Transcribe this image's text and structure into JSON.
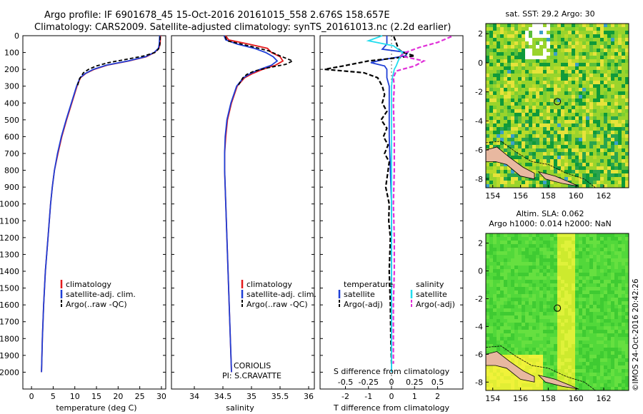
{
  "header": {
    "line1": "Argo profile: IF 6901678_45 15-Oct-2016 20161015_558 2.676S 158.657E",
    "line2": "Climatology: CARS2009. Satellite-adjusted climatology: synTS_20161013.nc (2.2d earlier)"
  },
  "colors": {
    "clim": "#e41a1c",
    "sat": "#1f3fd6",
    "argo": "#000000",
    "sal_sat": "#22ddee",
    "sal_argo": "#e030d8"
  },
  "chart_data": [
    {
      "type": "line",
      "id": "temperature",
      "xlabel": "temperature (deg C)",
      "ylabel": "depth (m)",
      "xlim": [
        -2,
        31
      ],
      "ylim": [
        2100,
        0
      ],
      "xticks": [
        "0",
        "5",
        "10",
        "15",
        "20",
        "25",
        "30"
      ],
      "yticks": [
        "0",
        "100",
        "200",
        "300",
        "400",
        "500",
        "600",
        "700",
        "800",
        "900",
        "1000",
        "1100",
        "1200",
        "1300",
        "1400",
        "1500",
        "1600",
        "1700",
        "1800",
        "1900",
        "2000"
      ],
      "legend": [
        "climatology",
        "satellite-adj. clim.",
        "Argo(..raw -QC)"
      ],
      "legend_loc": "lower-center",
      "series": [
        {
          "name": "climatology",
          "depth": [
            0,
            50,
            75,
            100,
            125,
            150,
            175,
            200,
            225,
            250,
            300,
            400,
            500,
            600,
            700,
            800,
            900,
            1000,
            1200,
            1400,
            1600,
            1800,
            2000
          ],
          "values": [
            29.8,
            29.7,
            29.4,
            28.4,
            26.5,
            22.5,
            17.5,
            14.5,
            12.5,
            11.3,
            10.5,
            9.3,
            8.1,
            7.0,
            6.1,
            5.3,
            4.8,
            4.4,
            3.8,
            3.2,
            2.8,
            2.5,
            2.3
          ]
        },
        {
          "name": "satellite-adj. clim.",
          "depth": [
            0,
            50,
            75,
            100,
            125,
            150,
            175,
            200,
            225,
            250,
            300,
            400,
            500,
            600,
            700,
            800,
            900,
            1000,
            1200,
            1400,
            1600,
            1800,
            2000
          ],
          "values": [
            29.6,
            29.5,
            29.3,
            28.3,
            26.3,
            22.3,
            17.3,
            14.3,
            12.4,
            11.2,
            10.4,
            9.2,
            8.0,
            6.9,
            6.0,
            5.3,
            4.8,
            4.4,
            3.8,
            3.2,
            2.8,
            2.5,
            2.3
          ]
        },
        {
          "name": "Argo(..raw -QC)",
          "depth": [
            5,
            30,
            60,
            80,
            100,
            120,
            140,
            160,
            180,
            200,
            220,
            240,
            260,
            300
          ],
          "values": [
            29.7,
            29.7,
            29.6,
            29.3,
            28.5,
            26.0,
            22.0,
            17.8,
            15.0,
            13.2,
            12.0,
            11.5,
            11.0,
            10.6
          ]
        }
      ]
    },
    {
      "type": "line",
      "id": "salinity",
      "xlabel": "salinity",
      "xlim": [
        33.6,
        36.1
      ],
      "ylim": [
        2100,
        0
      ],
      "xticks": [
        "34",
        "34.5",
        "35",
        "35.5",
        "36"
      ],
      "legend": [
        "climatology",
        "satellite-adj. clim.",
        "Argo(..raw -QC)"
      ],
      "legend_loc": "lower-right",
      "annotation": [
        "CORIOLIS",
        "PI: S.CRAVATTE"
      ],
      "series": [
        {
          "name": "climatology",
          "depth": [
            0,
            25,
            50,
            75,
            100,
            125,
            150,
            175,
            200,
            225,
            250,
            300,
            400,
            500,
            600,
            700,
            800,
            900,
            1000,
            1200,
            1500,
            1800,
            2000
          ],
          "values": [
            34.55,
            34.6,
            34.95,
            35.28,
            35.35,
            35.5,
            35.55,
            35.42,
            35.2,
            35.02,
            34.88,
            34.75,
            34.65,
            34.58,
            34.55,
            34.53,
            34.53,
            34.54,
            34.55,
            34.57,
            34.6,
            34.63,
            34.65
          ]
        },
        {
          "name": "satellite-adj. clim.",
          "depth": [
            0,
            25,
            50,
            75,
            100,
            125,
            150,
            175,
            200,
            225,
            250,
            300,
            400,
            500,
            600,
            700,
            800,
            900,
            1000,
            1200,
            1500,
            1800,
            2000
          ],
          "values": [
            34.52,
            34.55,
            34.75,
            35.05,
            35.25,
            35.38,
            35.45,
            35.35,
            35.15,
            34.98,
            34.86,
            34.74,
            34.64,
            34.57,
            34.54,
            34.53,
            34.53,
            34.54,
            34.55,
            34.57,
            34.6,
            34.63,
            34.65
          ]
        },
        {
          "name": "Argo(..raw -QC)",
          "depth": [
            5,
            30,
            60,
            90,
            120,
            150,
            170,
            190,
            210,
            230,
            250,
            300
          ],
          "values": [
            34.54,
            34.57,
            34.95,
            35.3,
            35.5,
            35.72,
            35.6,
            35.3,
            35.05,
            34.92,
            34.85,
            34.76
          ]
        }
      ]
    },
    {
      "type": "line",
      "id": "difference",
      "xlabel": "T difference from climatology",
      "xlabel_top": "S difference from climatology",
      "xlim": [
        -3.1,
        3.1
      ],
      "ylim": [
        2100,
        0
      ],
      "xticks": [
        "-2",
        "-1",
        "0",
        "1",
        "2"
      ],
      "sticks": [
        "-0.5",
        "-0.25",
        "0",
        "0.25",
        "0.5"
      ],
      "legend_temperature_title": "temperature",
      "legend_salinity_title": "salinity",
      "legend_temperature": [
        "satellite",
        "Argo(-adj)"
      ],
      "legend_salinity": [
        "satellite",
        "Argo(-adj)"
      ],
      "series": [
        {
          "name": "temperature satellite",
          "depth": [
            0,
            50,
            80,
            100,
            120,
            140,
            160,
            180,
            200,
            250,
            300,
            400,
            600,
            800,
            1000,
            1500,
            2000
          ],
          "values": [
            -0.2,
            -0.2,
            -0.4,
            0.7,
            0.6,
            -0.3,
            -0.9,
            -0.3,
            -0.2,
            -0.2,
            -0.1,
            -0.1,
            -0.1,
            -0.05,
            0,
            0,
            0
          ]
        },
        {
          "name": "temperature Argo(-adj)",
          "depth": [
            5,
            40,
            80,
            100,
            120,
            150,
            180,
            200,
            220,
            250,
            300,
            350,
            400,
            450,
            500,
            550,
            600,
            650,
            700,
            750,
            800,
            900,
            1000,
            1100,
            1200,
            1400,
            1600,
            1800,
            1950
          ],
          "values": [
            0.1,
            0.2,
            0.3,
            0.5,
            1.0,
            -1.0,
            -2.1,
            -2.9,
            -1.2,
            -0.6,
            -0.4,
            -0.3,
            -0.4,
            -0.2,
            -0.45,
            -0.2,
            -0.35,
            -0.15,
            -0.3,
            -0.1,
            -0.15,
            -0.25,
            -0.1,
            -0.12,
            -0.05,
            -0.1,
            -0.05,
            -0.03,
            0
          ]
        },
        {
          "name": "salinity satellite",
          "depth": [
            0,
            30,
            60,
            100,
            140,
            180,
            200,
            250,
            300,
            400,
            600,
            800,
            1000,
            1500,
            2000
          ],
          "values": [
            -0.1,
            -0.25,
            0.02,
            0.12,
            0.08,
            0.05,
            0.03,
            0.01,
            0.0,
            0.0,
            0.0,
            0.0,
            0.0,
            0.0,
            0.0
          ]
        },
        {
          "name": "salinity Argo(-adj)",
          "depth": [
            5,
            40,
            70,
            100,
            120,
            150,
            180,
            210,
            250,
            300,
            400,
            600,
            800,
            1000,
            1200,
            1400,
            1600,
            1800,
            1950
          ],
          "values": [
            0.65,
            0.5,
            0.3,
            0.15,
            0.1,
            0.35,
            0.25,
            0.05,
            0.02,
            0.03,
            0.02,
            0.03,
            0.03,
            0.02,
            0.03,
            0.03,
            0.02,
            0.02,
            0.02
          ]
        }
      ]
    },
    {
      "type": "heatmap",
      "id": "sst-map",
      "title": "sat. SST: 29.2 Argo: 30",
      "xlim": [
        153.5,
        163.8
      ],
      "ylim": [
        -8.6,
        2.7
      ],
      "xticks": [
        "154",
        "156",
        "158",
        "160",
        "162"
      ],
      "yticks": [
        "2",
        "0",
        "-2",
        "-4",
        "-6",
        "-8"
      ],
      "argo_position": [
        158.657,
        -2.676
      ]
    },
    {
      "type": "heatmap",
      "id": "sla-map",
      "title1": "Altim. SLA: 0.062",
      "title2": "Argo h1000: 0.014 h2000: NaN",
      "xlim": [
        153.5,
        163.8
      ],
      "ylim": [
        -8.6,
        2.7
      ],
      "xticks": [
        "154",
        "156",
        "158",
        "160",
        "162"
      ],
      "yticks": [
        "2",
        "0",
        "-2",
        "-4",
        "-6",
        "-8"
      ],
      "argo_position": [
        158.657,
        -2.676
      ]
    }
  ],
  "credit": "©IMOS 24-Oct-2016 20:42:26"
}
